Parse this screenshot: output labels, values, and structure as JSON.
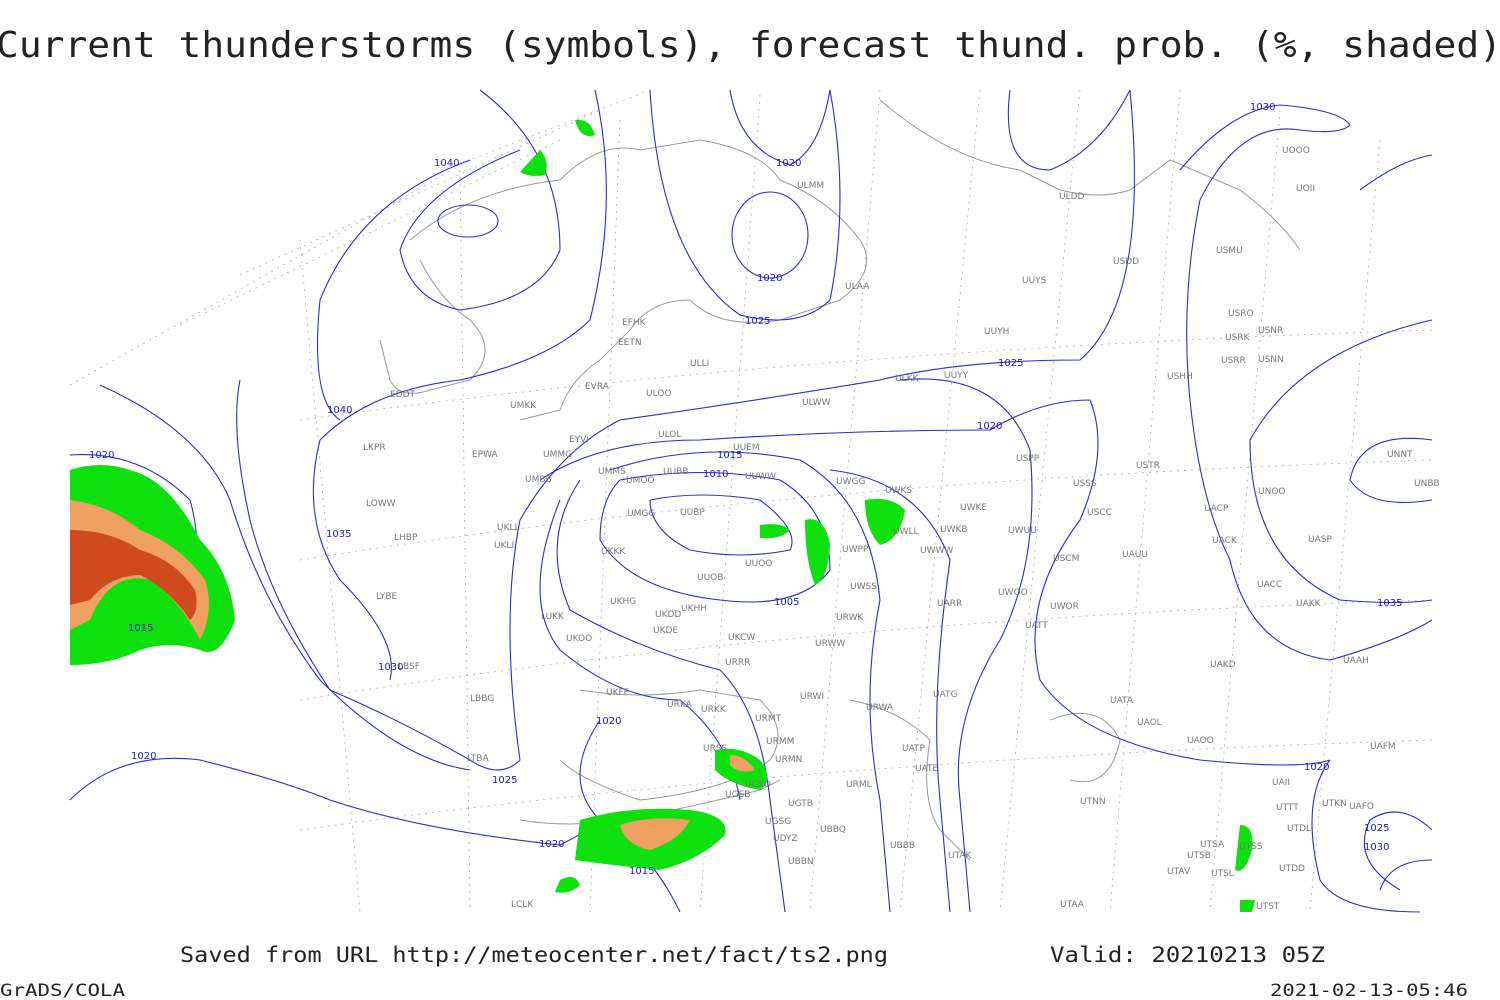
{
  "title": "Current thunderstorms (symbols), forecast thund. prob. (%, shaded)",
  "footer": {
    "saved": "Saved from URL http://meteocenter.net/fact/ts2.png",
    "valid": "Valid: 20210213 05Z",
    "software": "GrADS/COLA",
    "timestamp": "2021-02-13-05:46"
  },
  "isobar_labels": [
    "1040",
    "1040",
    "1020",
    "1020",
    "1025",
    "1030",
    "1025",
    "1020",
    "1035",
    "1030",
    "1020",
    "1020",
    "1020",
    "1020",
    "1020",
    "1015",
    "1015",
    "1015",
    "1010",
    "1005",
    "1035",
    "1025",
    "1025",
    "1030"
  ],
  "stations": [
    "ULMM",
    "ULDD",
    "UOOO",
    "UOII",
    "USDD",
    "USMU",
    "UUYS",
    "ULAA",
    "USRO",
    "USRK",
    "USNR",
    "USRR",
    "USNN",
    "UUYH",
    "EFHK",
    "EETN",
    "ULLI",
    "EVRA",
    "ULOO",
    "ULKK",
    "UUYY",
    "USHH",
    "UMKK",
    "EDDT",
    "ULWW",
    "EYVI",
    "ULOL",
    "UUEM",
    "EPWA",
    "UMMG",
    "LKPR",
    "USPP",
    "USTR",
    "UNNT",
    "UNBB",
    "UMMS",
    "UUBB",
    "UUWW",
    "UMOO",
    "UMBB",
    "UWKS",
    "UWGG",
    "USSS",
    "UNOO",
    "UWKE",
    "UACP",
    "LOWW",
    "UMGG",
    "UUBP",
    "UKLL",
    "USCC",
    "UWKB",
    "UWUU",
    "UWLL",
    "LHBP",
    "UKLI",
    "UKKK",
    "UACK",
    "UASP",
    "UWPP",
    "UWWW",
    "UUOO",
    "USCM",
    "UAUU",
    "UUOB",
    "UWSS",
    "UACC",
    "UAKK",
    "LYBE",
    "UKHG",
    "UKDD",
    "UKHH",
    "UARR",
    "UWOO",
    "UWOR",
    "LUKK",
    "UKOO",
    "UKDE",
    "URWK",
    "UATT",
    "UKCW",
    "URWW",
    "LBSF",
    "URRR",
    "UAKD",
    "UAAH",
    "UKFF",
    "URWI",
    "UATG",
    "UATA",
    "LBBG",
    "URKA",
    "URKK",
    "URMT",
    "UAOL",
    "URWA",
    "URMM",
    "UAOO",
    "UAFM",
    "URSS",
    "URMN",
    "UATP",
    "LTBA",
    "UATE",
    "UAII",
    "UGKO",
    "URML",
    "UGSB",
    "UGTB",
    "UTNN",
    "UTTT",
    "UTKN",
    "UAFO",
    "UGSG",
    "UTDL",
    "UBBQ",
    "UDYZ",
    "UBBB",
    "UTAK",
    "UTSA",
    "UTSB",
    "UTSS",
    "UBBN",
    "UTAV",
    "UTSL",
    "UTDD",
    "LCLK",
    "UTAA",
    "UTST"
  ]
}
